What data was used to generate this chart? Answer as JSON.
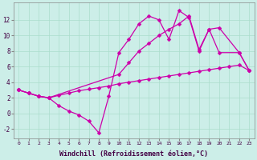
{
  "background_color": "#cceee8",
  "grid_color": "#aaddcc",
  "line_color": "#cc00aa",
  "marker": "D",
  "markersize": 2.5,
  "linewidth": 0.9,
  "xlabel": "Windchill (Refroidissement éolien,°C)",
  "xlabel_fontsize": 6.0,
  "xlim": [
    -0.5,
    23.5
  ],
  "ylim": [
    -3.2,
    14.2
  ],
  "xtick_labels": [
    "0",
    "1",
    "2",
    "3",
    "4",
    "5",
    "6",
    "7",
    "8",
    "9",
    "10",
    "11",
    "12",
    "13",
    "14",
    "15",
    "16",
    "17",
    "18",
    "19",
    "20",
    "21",
    "22",
    "23"
  ],
  "ytick_values": [
    -2,
    0,
    2,
    4,
    6,
    8,
    10,
    12
  ],
  "line1_x": [
    0,
    1,
    2,
    3,
    4,
    5,
    6,
    7,
    8,
    9,
    10,
    11,
    12,
    13,
    14,
    15,
    16,
    17,
    18,
    19,
    20,
    21,
    22,
    23
  ],
  "line1_y": [
    3.0,
    2.6,
    2.2,
    2.0,
    2.3,
    2.6,
    2.9,
    3.1,
    3.3,
    3.5,
    3.8,
    4.0,
    4.2,
    4.4,
    4.6,
    4.8,
    5.0,
    5.2,
    5.4,
    5.6,
    5.8,
    6.0,
    6.2,
    5.5
  ],
  "line2_x": [
    0,
    1,
    2,
    3,
    4,
    5,
    6,
    7,
    8,
    9,
    10,
    11,
    12,
    13,
    14,
    15,
    16,
    17,
    18,
    19,
    20,
    22,
    23
  ],
  "line2_y": [
    3.0,
    2.6,
    2.2,
    2.0,
    1.0,
    0.3,
    -0.2,
    -1.0,
    -2.5,
    2.2,
    7.8,
    9.5,
    11.5,
    12.5,
    12.0,
    9.5,
    13.2,
    12.3,
    8.0,
    10.8,
    7.8,
    7.8,
    5.5
  ],
  "line3_x": [
    0,
    1,
    2,
    3,
    10,
    11,
    12,
    13,
    14,
    15,
    16,
    17,
    18,
    19,
    20,
    22,
    23
  ],
  "line3_y": [
    3.0,
    2.6,
    2.2,
    2.0,
    5.0,
    6.5,
    8.0,
    9.0,
    10.0,
    10.8,
    11.5,
    12.5,
    8.2,
    10.8,
    11.0,
    7.8,
    5.5
  ]
}
